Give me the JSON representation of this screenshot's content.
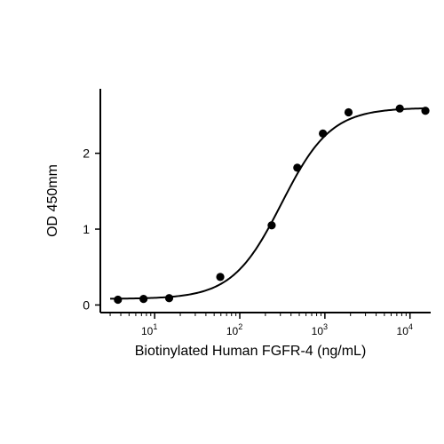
{
  "chart_data": {
    "type": "scatter",
    "xlabel": "Biotinylated Human FGFR-4 (ng/mL)",
    "ylabel": "OD 450mm",
    "xscale": "log",
    "xlim": [
      2.3,
      17500
    ],
    "ylim": [
      -0.1,
      2.85
    ],
    "grid": false,
    "x_ticks": [
      {
        "value": 10,
        "base": "10",
        "exp": "1"
      },
      {
        "value": 100,
        "base": "10",
        "exp": "2"
      },
      {
        "value": 1000,
        "base": "10",
        "exp": "3"
      },
      {
        "value": 10000,
        "base": "10",
        "exp": "4"
      }
    ],
    "y_ticks": [
      {
        "value": 0,
        "label": "0"
      },
      {
        "value": 1,
        "label": "1"
      },
      {
        "value": 2,
        "label": "2"
      }
    ],
    "series": [
      {
        "points": [
          {
            "x": 3.7,
            "y": 0.07
          },
          {
            "x": 7.4,
            "y": 0.08
          },
          {
            "x": 14.8,
            "y": 0.09
          },
          {
            "x": 59,
            "y": 0.37
          },
          {
            "x": 237,
            "y": 1.05
          },
          {
            "x": 474,
            "y": 1.81
          },
          {
            "x": 948,
            "y": 2.26
          },
          {
            "x": 1896,
            "y": 2.54
          },
          {
            "x": 7585,
            "y": 2.59
          },
          {
            "x": 15170,
            "y": 2.56
          }
        ],
        "fit": {
          "bottom": 0.08,
          "top": 2.6,
          "ec50": 310,
          "hill": 1.5
        },
        "color": "#000000"
      }
    ]
  }
}
